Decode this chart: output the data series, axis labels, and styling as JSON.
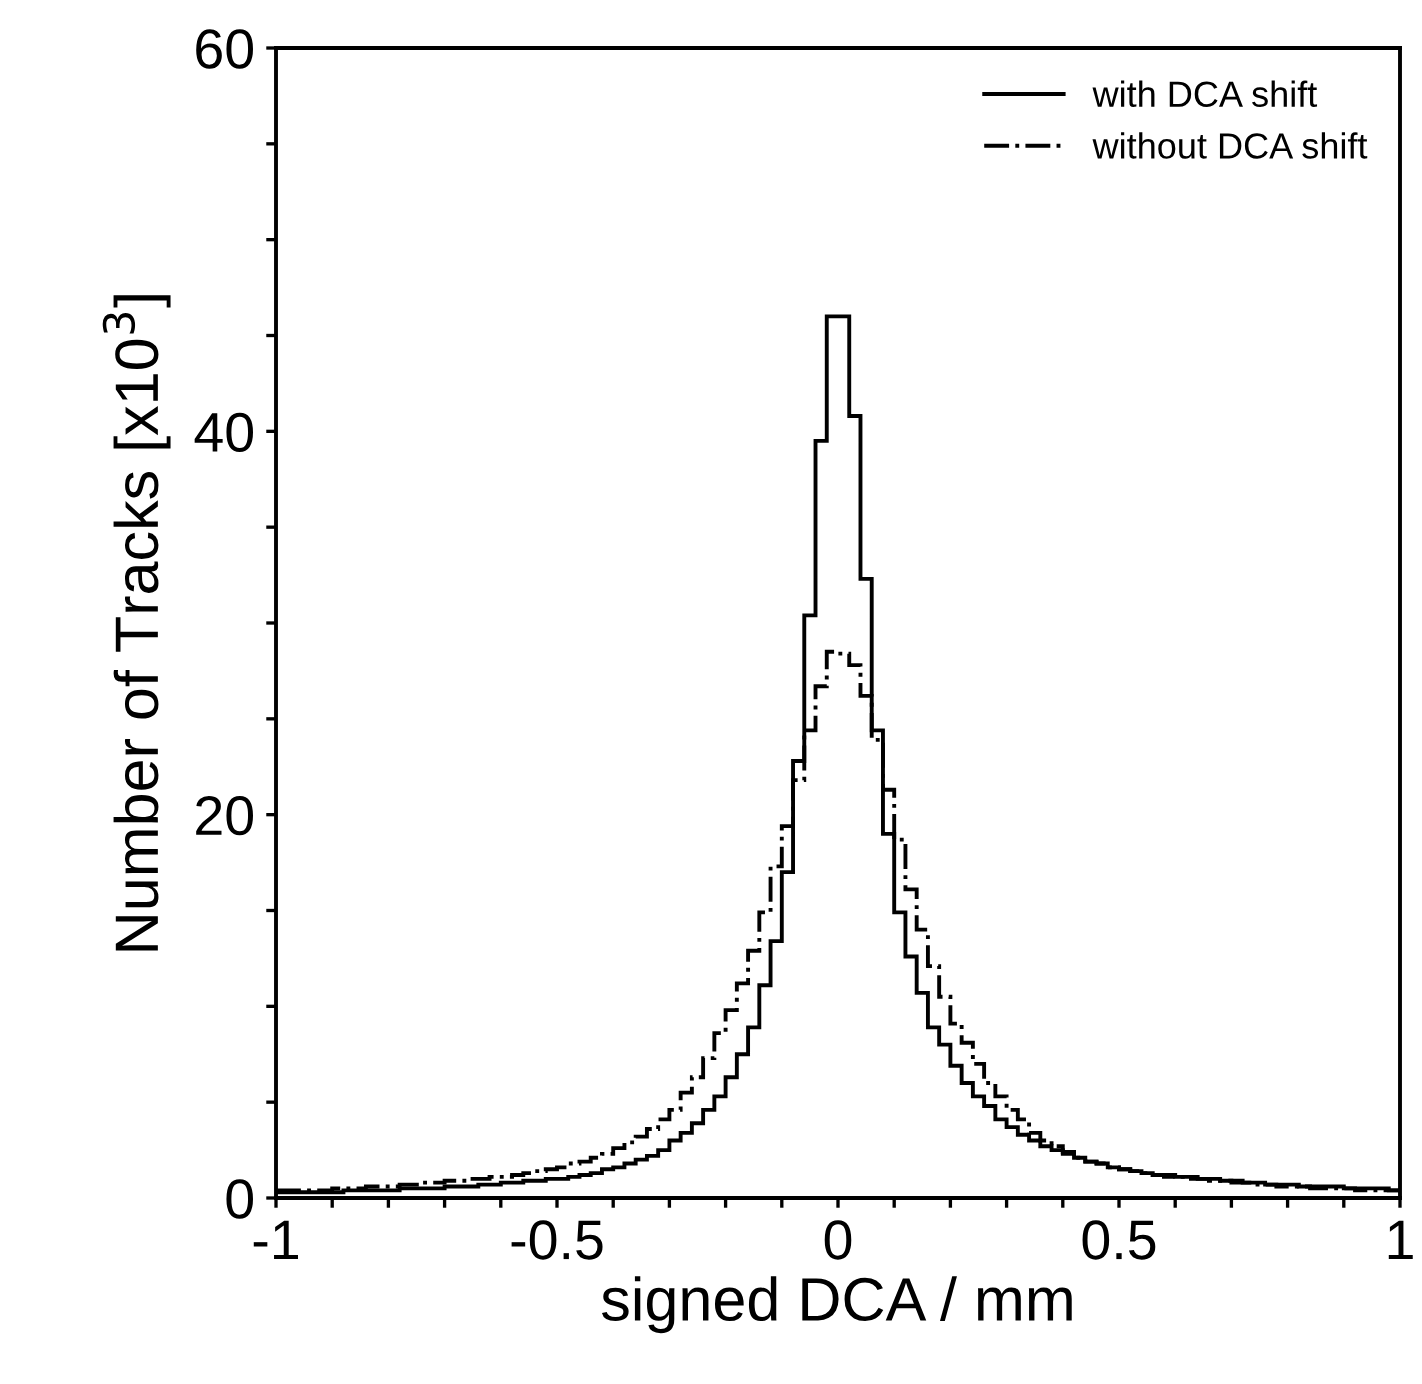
{
  "chart_data": {
    "type": "histogram",
    "xlabel": "signed DCA / mm",
    "ylabel": "Number of Tracks [x10$^{3}$]",
    "bins": [
      -1,
      -0.98,
      -0.96,
      -0.94,
      -0.92,
      -0.9,
      -0.88,
      -0.86,
      -0.84,
      -0.82,
      -0.8,
      -0.78,
      -0.76,
      -0.74,
      -0.72,
      -0.7,
      -0.68,
      -0.66,
      -0.64,
      -0.62,
      -0.6,
      -0.58,
      -0.56,
      -0.54,
      -0.52,
      -0.5,
      -0.48,
      -0.46,
      -0.44,
      -0.42,
      -0.4,
      -0.38,
      -0.36,
      -0.34,
      -0.32,
      -0.3,
      -0.28,
      -0.26,
      -0.24,
      -0.22,
      -0.2,
      -0.18,
      -0.16,
      -0.14,
      -0.12,
      -0.1,
      -0.08,
      -0.06,
      -0.04,
      -0.02,
      0,
      0.02,
      0.04,
      0.06,
      0.08,
      0.1,
      0.12,
      0.14,
      0.16,
      0.18,
      0.2,
      0.22,
      0.24,
      0.26,
      0.28,
      0.3,
      0.32,
      0.34,
      0.36,
      0.38,
      0.4,
      0.42,
      0.44,
      0.46,
      0.48,
      0.5,
      0.52,
      0.54,
      0.56,
      0.58,
      0.6,
      0.62,
      0.64,
      0.66,
      0.68,
      0.7,
      0.72,
      0.74,
      0.76,
      0.78,
      0.8,
      0.82,
      0.84,
      0.86,
      0.88,
      0.9,
      0.92,
      0.94,
      0.96,
      0.98,
      1
    ],
    "series": [
      {
        "name": "with DCA shift",
        "color": "#000000",
        "line_style": "solid",
        "values": [
          0.3,
          0.3,
          0.3,
          0.3,
          0.3,
          0.3,
          0.4,
          0.4,
          0.4,
          0.4,
          0.4,
          0.5,
          0.5,
          0.5,
          0.5,
          0.6,
          0.6,
          0.6,
          0.7,
          0.7,
          0.8,
          0.8,
          0.9,
          0.9,
          1.0,
          1.0,
          1.1,
          1.2,
          1.3,
          1.5,
          1.6,
          1.8,
          2.0,
          2.2,
          2.5,
          3.0,
          3.4,
          3.9,
          4.6,
          5.3,
          6.3,
          7.5,
          8.9,
          11.1,
          13.4,
          17.0,
          22.8,
          30.4,
          39.5,
          46.0,
          46.0,
          40.8,
          32.3,
          24.4,
          19.0,
          14.9,
          12.6,
          10.7,
          8.9,
          8.0,
          6.9,
          6.0,
          5.3,
          4.8,
          4.1,
          3.7,
          3.3,
          3.0,
          2.7,
          2.5,
          2.3,
          2.1,
          1.9,
          1.8,
          1.6,
          1.5,
          1.4,
          1.3,
          1.2,
          1.2,
          1.1,
          1.1,
          1.0,
          1.0,
          0.9,
          0.9,
          0.8,
          0.8,
          0.7,
          0.7,
          0.7,
          0.6,
          0.6,
          0.6,
          0.6,
          0.5,
          0.5,
          0.5,
          0.5,
          0.4
        ]
      },
      {
        "name": "without DCA shift",
        "color": "#000000",
        "line_style": "dashed",
        "values": [
          0.4,
          0.4,
          0.4,
          0.4,
          0.4,
          0.5,
          0.5,
          0.5,
          0.6,
          0.6,
          0.6,
          0.7,
          0.7,
          0.8,
          0.8,
          0.9,
          0.9,
          1.0,
          1.0,
          1.1,
          1.1,
          1.2,
          1.3,
          1.4,
          1.5,
          1.6,
          1.8,
          1.9,
          2.1,
          2.3,
          2.6,
          2.9,
          3.2,
          3.6,
          4.1,
          4.6,
          5.5,
          6.3,
          7.3,
          8.6,
          9.8,
          11.2,
          12.9,
          14.9,
          17.3,
          19.4,
          21.8,
          24.4,
          26.7,
          28.5,
          28.4,
          27.8,
          26.2,
          23.9,
          21.3,
          18.7,
          16.1,
          14.0,
          12.1,
          10.5,
          9.1,
          8.1,
          7.0,
          6.0,
          5.3,
          4.6,
          4.1,
          3.4,
          3.0,
          2.7,
          2.4,
          2.1,
          1.9,
          1.8,
          1.6,
          1.5,
          1.4,
          1.3,
          1.2,
          1.1,
          1.1,
          1.0,
          1.0,
          0.9,
          0.9,
          0.8,
          0.8,
          0.7,
          0.7,
          0.6,
          0.6,
          0.6,
          0.5,
          0.5,
          0.5,
          0.5,
          0.4,
          0.4,
          0.4,
          0.4
        ]
      }
    ],
    "xlim": [
      -1,
      1
    ],
    "ylim": [
      0,
      60
    ],
    "xticks": [
      -1,
      {
        "value": -0.9,
        "label": null
      },
      {
        "value": -0.8,
        "label": null
      },
      {
        "value": -0.7,
        "label": null
      },
      {
        "value": -0.6,
        "label": null
      },
      -0.5,
      {
        "value": -0.4,
        "label": null
      },
      {
        "value": -0.3,
        "label": null
      },
      {
        "value": -0.2,
        "label": null
      },
      {
        "value": -0.1,
        "label": null
      },
      0,
      {
        "value": 0.1,
        "label": null
      },
      {
        "value": 0.2,
        "label": null
      },
      {
        "value": 0.3,
        "label": null
      },
      {
        "value": 0.4,
        "label": null
      },
      0.5,
      {
        "value": 0.6,
        "label": null
      },
      {
        "value": 0.7,
        "label": null
      },
      {
        "value": 0.8,
        "label": null
      },
      {
        "value": 0.9,
        "label": null
      },
      1
    ],
    "yticks": [
      0,
      {
        "value": 5,
        "label": null
      },
      {
        "value": 10,
        "label": null
      },
      {
        "value": 15,
        "label": null
      },
      20,
      {
        "value": 25,
        "label": null
      },
      {
        "value": 30,
        "label": null
      },
      {
        "value": 35,
        "label": null
      },
      40,
      {
        "value": 45,
        "label": null
      },
      {
        "value": 50,
        "label": null
      },
      {
        "value": 55,
        "label": null
      },
      60
    ],
    "grid": false,
    "legend": "top right"
  }
}
